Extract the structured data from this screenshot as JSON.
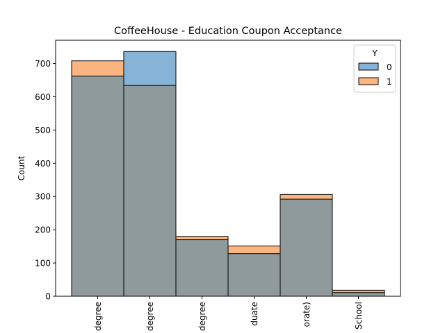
{
  "chart_data": {
    "type": "bar",
    "title": "CoffeeHouse - Education Coupon Acceptance",
    "xlabel": "",
    "ylabel": "Count",
    "ylim": [
      0,
      770
    ],
    "yticks": [
      0,
      100,
      200,
      300,
      400,
      500,
      600,
      700
    ],
    "grid": false,
    "legend": {
      "title": "Y",
      "placement": "top-right",
      "entries": [
        "0",
        "1"
      ]
    },
    "categories": [
      "degree",
      "degree",
      "degree",
      "duate",
      "orate)",
      "School"
    ],
    "series": [
      {
        "name": "0",
        "color": "#1f77b4",
        "values": [
          662,
          736,
          170,
          128,
          292,
          11
        ]
      },
      {
        "name": "1",
        "color": "#ff7f0e",
        "values": [
          708,
          634,
          180,
          151,
          306,
          18
        ]
      }
    ],
    "colors": {
      "series0_fill": "#86b3d6",
      "series1_fill": "#fbb581",
      "overlap_fill": "#8e9a9c",
      "edge": "#000000"
    }
  }
}
